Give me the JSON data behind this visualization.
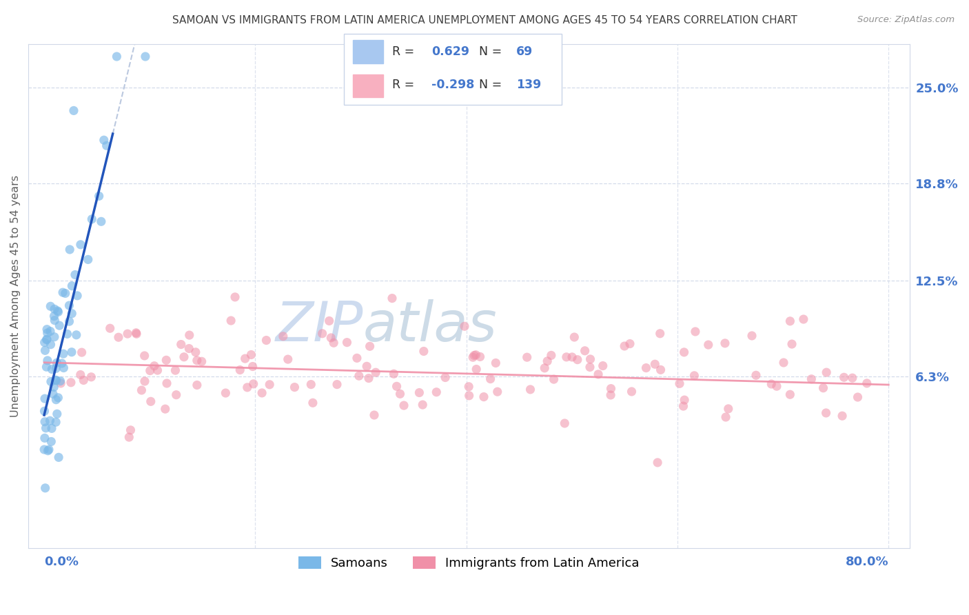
{
  "title": "SAMOAN VS IMMIGRANTS FROM LATIN AMERICA UNEMPLOYMENT AMONG AGES 45 TO 54 YEARS CORRELATION CHART",
  "source": "Source: ZipAtlas.com",
  "ylabel": "Unemployment Among Ages 45 to 54 years",
  "ytick_values": [
    0.063,
    0.125,
    0.188,
    0.25
  ],
  "ytick_labels": [
    "6.3%",
    "12.5%",
    "18.8%",
    "25.0%"
  ],
  "xlim_data": [
    0.0,
    0.8
  ],
  "ylim_data": [
    -0.04,
    0.27
  ],
  "samoan_color": "#7ab8e8",
  "latin_color": "#f090a8",
  "samoan_line_color": "#2255bb",
  "latin_line_color": "#f090a8",
  "ref_line_color": "#b8c8e0",
  "axis_color": "#4477cc",
  "grid_color": "#d0d8e8",
  "title_color": "#404040",
  "source_color": "#909090",
  "watermark_color": "#d8e8f8",
  "legend_box_color": "#e8eef8",
  "samoan_R": "0.629",
  "samoan_N": "69",
  "latin_R": "-0.298",
  "latin_N": "139",
  "legend_label_samoan": "Samoans",
  "legend_label_latin": "Immigrants from Latin America"
}
